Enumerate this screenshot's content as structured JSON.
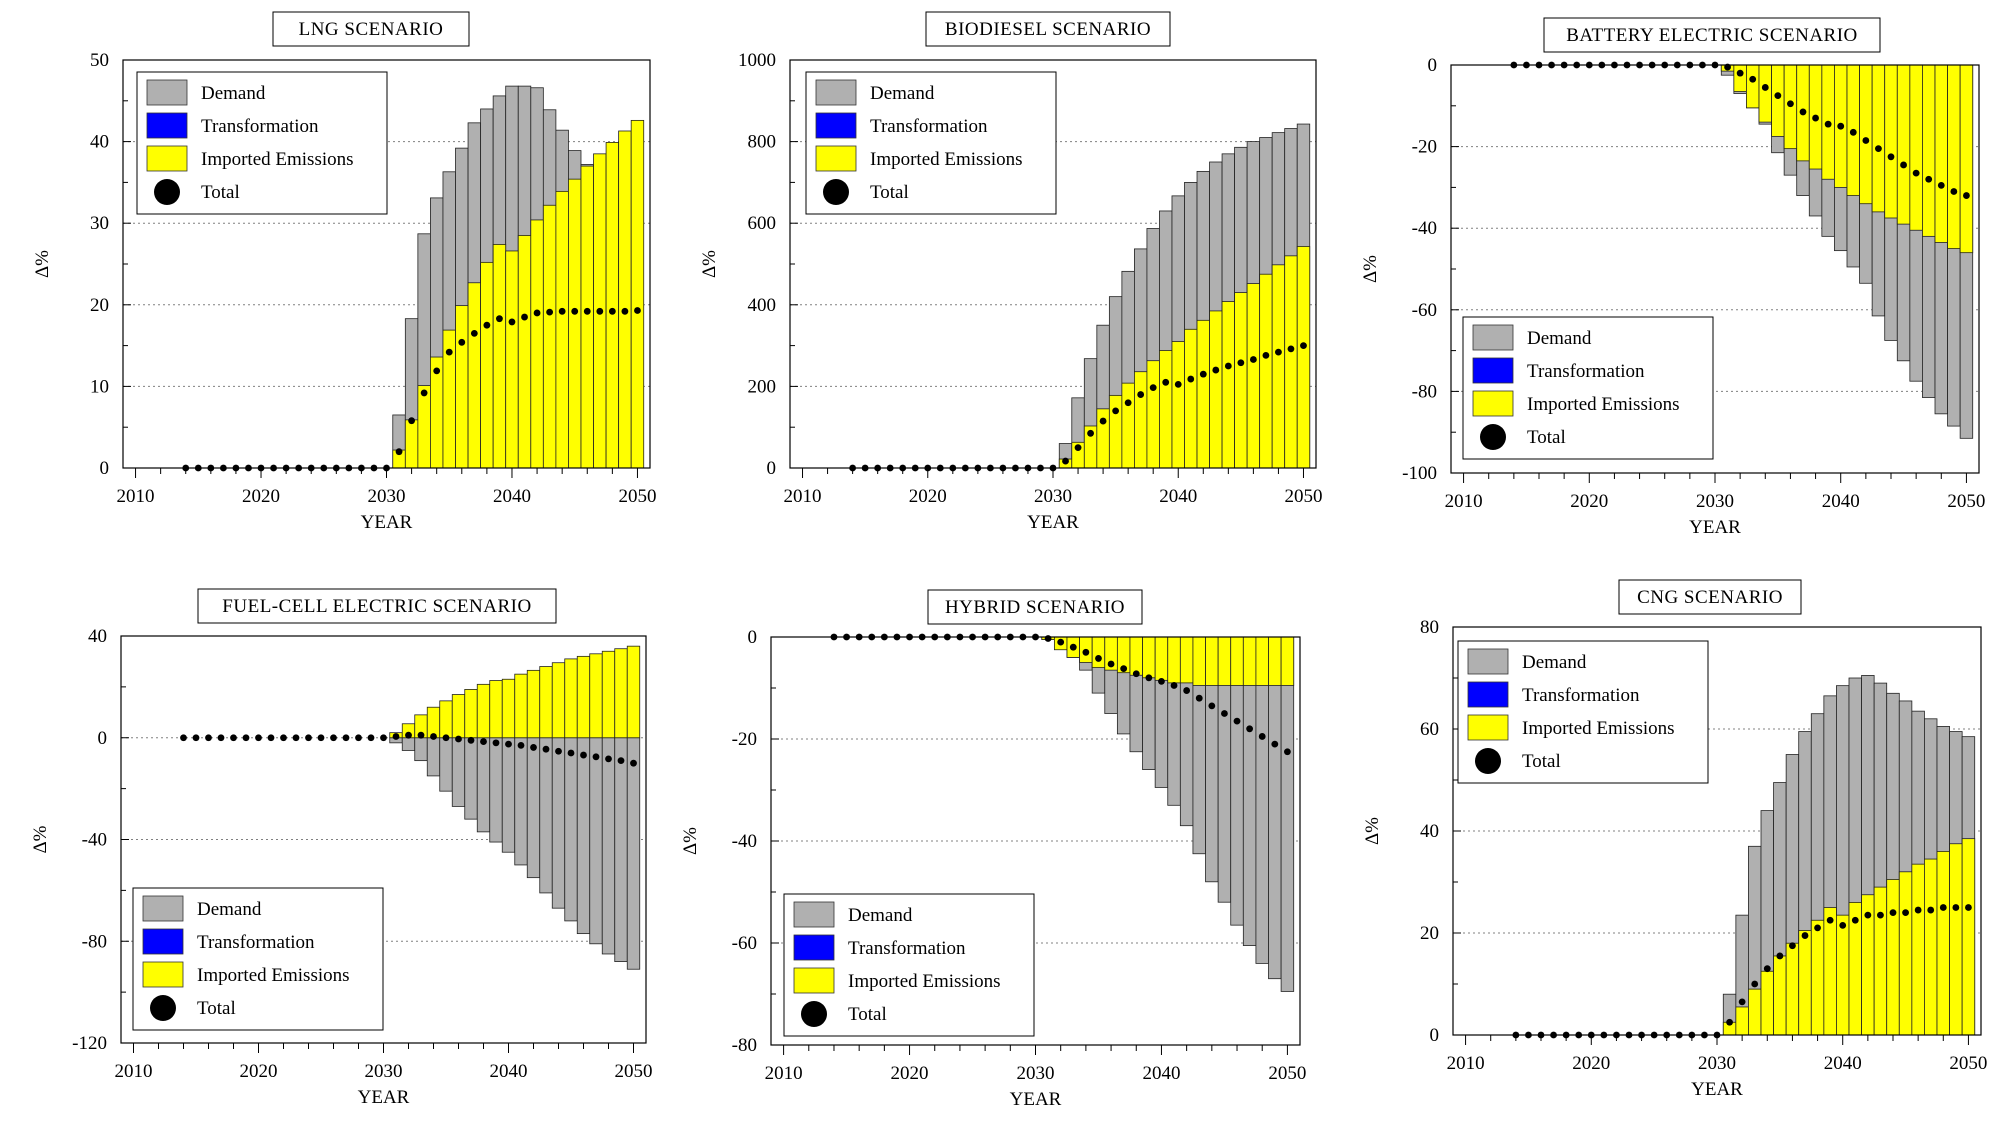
{
  "figure": {
    "xlabel": "YEAR",
    "ylabel": "Δ%"
  },
  "legend": {
    "demand": "Demand",
    "transformation": "Transformation",
    "imported": "Imported Emissions",
    "total": "Total"
  },
  "colors": {
    "demand": "#b0b0b0",
    "transformation": "#0000ff",
    "imported": "#ffff00",
    "total": "#000000",
    "gridline": "#808080",
    "frame": "#000000"
  },
  "chart_data": [
    {
      "type": "bar",
      "title": "LNG SCENARIO",
      "xlabel": "YEAR",
      "ylabel": "Δ%",
      "xlim": [
        2009,
        2051
      ],
      "ylim": [
        0,
        50
      ],
      "yticks": [
        0,
        10,
        20,
        30,
        40,
        50
      ],
      "xticks": [
        2010,
        2020,
        2030,
        2040,
        2050
      ],
      "grid": "horizontal dotted",
      "legend_position": "top-left",
      "years": [
        2031,
        2032,
        2033,
        2034,
        2035,
        2036,
        2037,
        2038,
        2039,
        2040,
        2041,
        2042,
        2043,
        2044,
        2045,
        2046,
        2047,
        2048,
        2049,
        2050
      ],
      "series": [
        {
          "name": "Demand",
          "values": [
            6.5,
            18.3,
            28.7,
            33.1,
            36.3,
            39.2,
            42.3,
            44.0,
            45.6,
            46.8,
            46.8,
            46.6,
            43.9,
            41.4,
            38.9,
            37.2,
            0,
            0,
            0,
            0
          ]
        },
        {
          "name": "Transformation",
          "values": [
            0,
            0,
            0,
            0,
            0,
            0,
            0,
            0,
            0,
            0,
            0,
            0,
            0,
            0,
            0,
            0,
            0,
            0,
            0,
            0
          ]
        },
        {
          "name": "Imported Emissions",
          "values": [
            2.2,
            5.9,
            10.1,
            13.6,
            16.9,
            19.9,
            22.7,
            25.2,
            27.4,
            26.6,
            28.5,
            30.4,
            32.2,
            33.9,
            35.4,
            37.0,
            38.5,
            39.9,
            41.3,
            42.6
          ]
        }
      ],
      "total_years": [
        2014,
        2015,
        2016,
        2017,
        2018,
        2019,
        2020,
        2021,
        2022,
        2023,
        2024,
        2025,
        2026,
        2027,
        2028,
        2029,
        2030,
        2031,
        2032,
        2033,
        2034,
        2035,
        2036,
        2037,
        2038,
        2039,
        2040,
        2041,
        2042,
        2043,
        2044,
        2045,
        2046,
        2047,
        2048,
        2049,
        2050
      ],
      "total": [
        0,
        0,
        0,
        0,
        0,
        0,
        0,
        0,
        0,
        0,
        0,
        0,
        0,
        0,
        0,
        0,
        0,
        2.0,
        5.8,
        9.2,
        11.9,
        14.2,
        15.4,
        16.5,
        17.5,
        18.3,
        17.9,
        18.5,
        19.0,
        19.1,
        19.2,
        19.2,
        19.2,
        19.2,
        19.2,
        19.2,
        19.3
      ]
    },
    {
      "type": "bar",
      "title": "BIODIESEL SCENARIO",
      "xlabel": "YEAR",
      "ylabel": "Δ%",
      "xlim": [
        2009,
        2051
      ],
      "ylim": [
        0,
        1000
      ],
      "yticks": [
        0,
        200,
        400,
        600,
        800,
        1000
      ],
      "xticks": [
        2010,
        2020,
        2030,
        2040,
        2050
      ],
      "grid": "horizontal dotted",
      "legend_position": "top-left",
      "years": [
        2031,
        2032,
        2033,
        2034,
        2035,
        2036,
        2037,
        2038,
        2039,
        2040,
        2041,
        2042,
        2043,
        2044,
        2045,
        2046,
        2047,
        2048,
        2049,
        2050
      ],
      "series": [
        {
          "name": "Demand",
          "values": [
            60,
            172,
            268,
            350,
            420,
            482,
            537,
            587,
            630,
            667,
            700,
            727,
            750,
            770,
            786,
            800,
            810,
            822,
            832,
            843
          ]
        },
        {
          "name": "Transformation",
          "values": [
            0,
            0,
            0,
            0,
            0,
            0,
            0,
            0,
            0,
            0,
            0,
            0,
            0,
            0,
            0,
            0,
            0,
            0,
            0,
            0
          ]
        },
        {
          "name": "Imported Emissions",
          "values": [
            22,
            63,
            103,
            145,
            178,
            208,
            236,
            263,
            288,
            310,
            340,
            362,
            385,
            408,
            430,
            452,
            475,
            498,
            520,
            543
          ]
        }
      ],
      "total_years": [
        2014,
        2015,
        2016,
        2017,
        2018,
        2019,
        2020,
        2021,
        2022,
        2023,
        2024,
        2025,
        2026,
        2027,
        2028,
        2029,
        2030,
        2031,
        2032,
        2033,
        2034,
        2035,
        2036,
        2037,
        2038,
        2039,
        2040,
        2041,
        2042,
        2043,
        2044,
        2045,
        2046,
        2047,
        2048,
        2049,
        2050
      ],
      "total": [
        0,
        0,
        0,
        0,
        0,
        0,
        0,
        0,
        0,
        0,
        0,
        0,
        0,
        0,
        0,
        0,
        0,
        17,
        50,
        85,
        115,
        140,
        160,
        180,
        197,
        210,
        205,
        218,
        230,
        240,
        250,
        258,
        266,
        276,
        284,
        292,
        300
      ]
    },
    {
      "type": "bar",
      "title": "BATTERY ELECTRIC SCENARIO",
      "xlabel": "YEAR",
      "ylabel": "Δ%",
      "xlim": [
        2009,
        2051
      ],
      "ylim": [
        -100,
        0
      ],
      "yticks": [
        -100,
        -80,
        -60,
        -40,
        -20,
        0
      ],
      "xticks": [
        2010,
        2020,
        2030,
        2040,
        2050
      ],
      "grid": "horizontal dotted",
      "legend_position": "bottom-left",
      "years": [
        2031,
        2032,
        2033,
        2034,
        2035,
        2036,
        2037,
        2038,
        2039,
        2040,
        2041,
        2042,
        2043,
        2044,
        2045,
        2046,
        2047,
        2048,
        2049,
        2050
      ],
      "series": [
        {
          "name": "Demand",
          "values": [
            -2.5,
            -7,
            -10.5,
            -14.5,
            -21.5,
            -27,
            -32,
            -37,
            -42,
            -45.5,
            -49.5,
            -53.5,
            -61.5,
            -67.5,
            -72.5,
            -77.5,
            -81.5,
            -85.5,
            -88.5,
            -91.5
          ]
        },
        {
          "name": "Transformation",
          "values": [
            0,
            0,
            0,
            0,
            0,
            0,
            0,
            0,
            0,
            0,
            0,
            0,
            0,
            0,
            0,
            0,
            0,
            0,
            0,
            0
          ]
        },
        {
          "name": "Imported Emissions",
          "values": [
            -1.5,
            -6.5,
            -10.5,
            -14,
            -17.5,
            -20.5,
            -23.5,
            -25.5,
            -28,
            -30,
            -32,
            -34,
            -36,
            -37.5,
            -39,
            -40.5,
            -42,
            -43.5,
            -45,
            -46
          ]
        }
      ],
      "total_years": [
        2014,
        2015,
        2016,
        2017,
        2018,
        2019,
        2020,
        2021,
        2022,
        2023,
        2024,
        2025,
        2026,
        2027,
        2028,
        2029,
        2030,
        2031,
        2032,
        2033,
        2034,
        2035,
        2036,
        2037,
        2038,
        2039,
        2040,
        2041,
        2042,
        2043,
        2044,
        2045,
        2046,
        2047,
        2048,
        2049,
        2050
      ],
      "total": [
        0,
        0,
        0,
        0,
        0,
        0,
        0,
        0,
        0,
        0,
        0,
        0,
        0,
        0,
        0,
        0,
        0,
        -0.5,
        -2,
        -3.5,
        -5.5,
        -7.5,
        -9.5,
        -11.5,
        -13,
        -14.5,
        -15,
        -16.5,
        -18.5,
        -20.5,
        -22.5,
        -24.5,
        -26.5,
        -28,
        -29.5,
        -31,
        -32
      ]
    },
    {
      "type": "bar",
      "title": "FUEL-CELL ELECTRIC SCENARIO",
      "xlabel": "YEAR",
      "ylabel": "Δ%",
      "xlim": [
        2009,
        2051
      ],
      "ylim": [
        -120,
        40
      ],
      "yticks": [
        -120,
        -80,
        -40,
        0,
        40
      ],
      "xticks": [
        2010,
        2020,
        2030,
        2040,
        2050
      ],
      "grid": "horizontal dotted",
      "legend_position": "bottom-left",
      "years": [
        2031,
        2032,
        2033,
        2034,
        2035,
        2036,
        2037,
        2038,
        2039,
        2040,
        2041,
        2042,
        2043,
        2044,
        2045,
        2046,
        2047,
        2048,
        2049,
        2050
      ],
      "series": [
        {
          "name": "Demand",
          "values": [
            -2,
            -5,
            -9,
            -15,
            -21,
            -27,
            -32,
            -37,
            -41,
            -45,
            -50,
            -55,
            -61,
            -67,
            -72,
            -77,
            -81,
            -85,
            -88,
            -91
          ]
        },
        {
          "name": "Transformation",
          "values": [
            0,
            0,
            0,
            0,
            0,
            0,
            0,
            0,
            0,
            0,
            0,
            0,
            0,
            0,
            0,
            0,
            0,
            0,
            0,
            0
          ]
        },
        {
          "name": "Imported Emissions",
          "values": [
            2,
            5.5,
            9,
            12,
            14.5,
            17,
            19,
            21,
            22.5,
            23,
            25,
            26.5,
            28,
            29.5,
            31,
            32,
            33,
            34,
            35,
            36
          ]
        }
      ],
      "total_years": [
        2014,
        2015,
        2016,
        2017,
        2018,
        2019,
        2020,
        2021,
        2022,
        2023,
        2024,
        2025,
        2026,
        2027,
        2028,
        2029,
        2030,
        2031,
        2032,
        2033,
        2034,
        2035,
        2036,
        2037,
        2038,
        2039,
        2040,
        2041,
        2042,
        2043,
        2044,
        2045,
        2046,
        2047,
        2048,
        2049,
        2050
      ],
      "total": [
        0,
        0,
        0,
        0,
        0,
        0,
        0,
        0,
        0,
        0,
        0,
        0,
        0,
        0,
        0,
        0,
        0,
        0.5,
        1,
        1,
        0.5,
        0,
        -0.5,
        -1,
        -1.5,
        -2,
        -2.5,
        -3,
        -3.8,
        -4.5,
        -5.3,
        -6,
        -6.8,
        -7.5,
        -8.3,
        -9,
        -10
      ]
    },
    {
      "type": "bar",
      "title": "HYBRID SCENARIO",
      "xlabel": "YEAR",
      "ylabel": "Δ%",
      "xlim": [
        2009,
        2051
      ],
      "ylim": [
        -80,
        0
      ],
      "yticks": [
        -80,
        -60,
        -40,
        -20,
        0
      ],
      "xticks": [
        2010,
        2020,
        2030,
        2040,
        2050
      ],
      "grid": "horizontal dotted",
      "legend_position": "bottom-left",
      "years": [
        2031,
        2032,
        2033,
        2034,
        2035,
        2036,
        2037,
        2038,
        2039,
        2040,
        2041,
        2042,
        2043,
        2044,
        2045,
        2046,
        2047,
        2048,
        2049,
        2050
      ],
      "series": [
        {
          "name": "Demand",
          "values": [
            -0.5,
            -2,
            -4,
            -6.5,
            -11,
            -15,
            -19,
            -22.5,
            -26,
            -29.5,
            -33,
            -37,
            -42.5,
            -48,
            -52,
            -56.5,
            -60.5,
            -64,
            -67,
            -69.5
          ]
        },
        {
          "name": "Transformation",
          "values": [
            0,
            0,
            0,
            0,
            0,
            0,
            0,
            0,
            0,
            0,
            0,
            0,
            0,
            0,
            0,
            0,
            0,
            0,
            0,
            0
          ]
        },
        {
          "name": "Imported Emissions",
          "values": [
            -0.5,
            -2.5,
            -4,
            -5,
            -6,
            -6.5,
            -7,
            -7.5,
            -8,
            -8.5,
            -9,
            -9,
            -9.5,
            -9.5,
            -9.5,
            -9.5,
            -9.5,
            -9.5,
            -9.5,
            -9.5
          ]
        }
      ],
      "total_years": [
        2014,
        2015,
        2016,
        2017,
        2018,
        2019,
        2020,
        2021,
        2022,
        2023,
        2024,
        2025,
        2026,
        2027,
        2028,
        2029,
        2030,
        2031,
        2032,
        2033,
        2034,
        2035,
        2036,
        2037,
        2038,
        2039,
        2040,
        2041,
        2042,
        2043,
        2044,
        2045,
        2046,
        2047,
        2048,
        2049,
        2050
      ],
      "total": [
        0,
        0,
        0,
        0,
        0,
        0,
        0,
        0,
        0,
        0,
        0,
        0,
        0,
        0,
        0,
        0,
        0,
        -0.3,
        -1,
        -2,
        -3,
        -4.2,
        -5.3,
        -6.2,
        -7.2,
        -8,
        -8.7,
        -9.5,
        -10.5,
        -12,
        -13.5,
        -15,
        -16.5,
        -18,
        -19.5,
        -21,
        -22.5
      ]
    },
    {
      "type": "bar",
      "title": "CNG SCENARIO",
      "xlabel": "YEAR",
      "ylabel": "Δ%",
      "xlim": [
        2009,
        2051
      ],
      "ylim": [
        0,
        80
      ],
      "yticks": [
        0,
        20,
        40,
        60,
        80
      ],
      "xticks": [
        2010,
        2020,
        2030,
        2040,
        2050
      ],
      "grid": "horizontal dotted",
      "legend_position": "top-left",
      "years": [
        2031,
        2032,
        2033,
        2034,
        2035,
        2036,
        2037,
        2038,
        2039,
        2040,
        2041,
        2042,
        2043,
        2044,
        2045,
        2046,
        2047,
        2048,
        2049,
        2050
      ],
      "series": [
        {
          "name": "Demand",
          "values": [
            8,
            23.5,
            37,
            44,
            49.5,
            55,
            59.5,
            63,
            66.5,
            68.5,
            70,
            70.5,
            69,
            67,
            65.5,
            63.5,
            62,
            60.5,
            59.5,
            58.5
          ]
        },
        {
          "name": "Transformation",
          "values": [
            0,
            0,
            0,
            0,
            0,
            0,
            0,
            0,
            0,
            0,
            0,
            0,
            0,
            0,
            0,
            0,
            0,
            0,
            0,
            0
          ]
        },
        {
          "name": "Imported Emissions",
          "values": [
            2.5,
            5.5,
            9,
            12.5,
            15.5,
            18,
            20.5,
            22.5,
            25,
            23.5,
            26,
            27.5,
            29,
            30.5,
            32,
            33.5,
            34.5,
            36,
            37.5,
            38.5
          ]
        }
      ],
      "total_years": [
        2014,
        2015,
        2016,
        2017,
        2018,
        2019,
        2020,
        2021,
        2022,
        2023,
        2024,
        2025,
        2026,
        2027,
        2028,
        2029,
        2030,
        2031,
        2032,
        2033,
        2034,
        2035,
        2036,
        2037,
        2038,
        2039,
        2040,
        2041,
        2042,
        2043,
        2044,
        2045,
        2046,
        2047,
        2048,
        2049,
        2050
      ],
      "total": [
        0,
        0,
        0,
        0,
        0,
        0,
        0,
        0,
        0,
        0,
        0,
        0,
        0,
        0,
        0,
        0,
        0,
        2.5,
        6.5,
        10,
        13,
        15.5,
        17.5,
        19.5,
        21,
        22.5,
        21.5,
        22.5,
        23.5,
        23.5,
        24,
        24,
        24.5,
        24.5,
        25,
        25,
        25
      ]
    }
  ]
}
